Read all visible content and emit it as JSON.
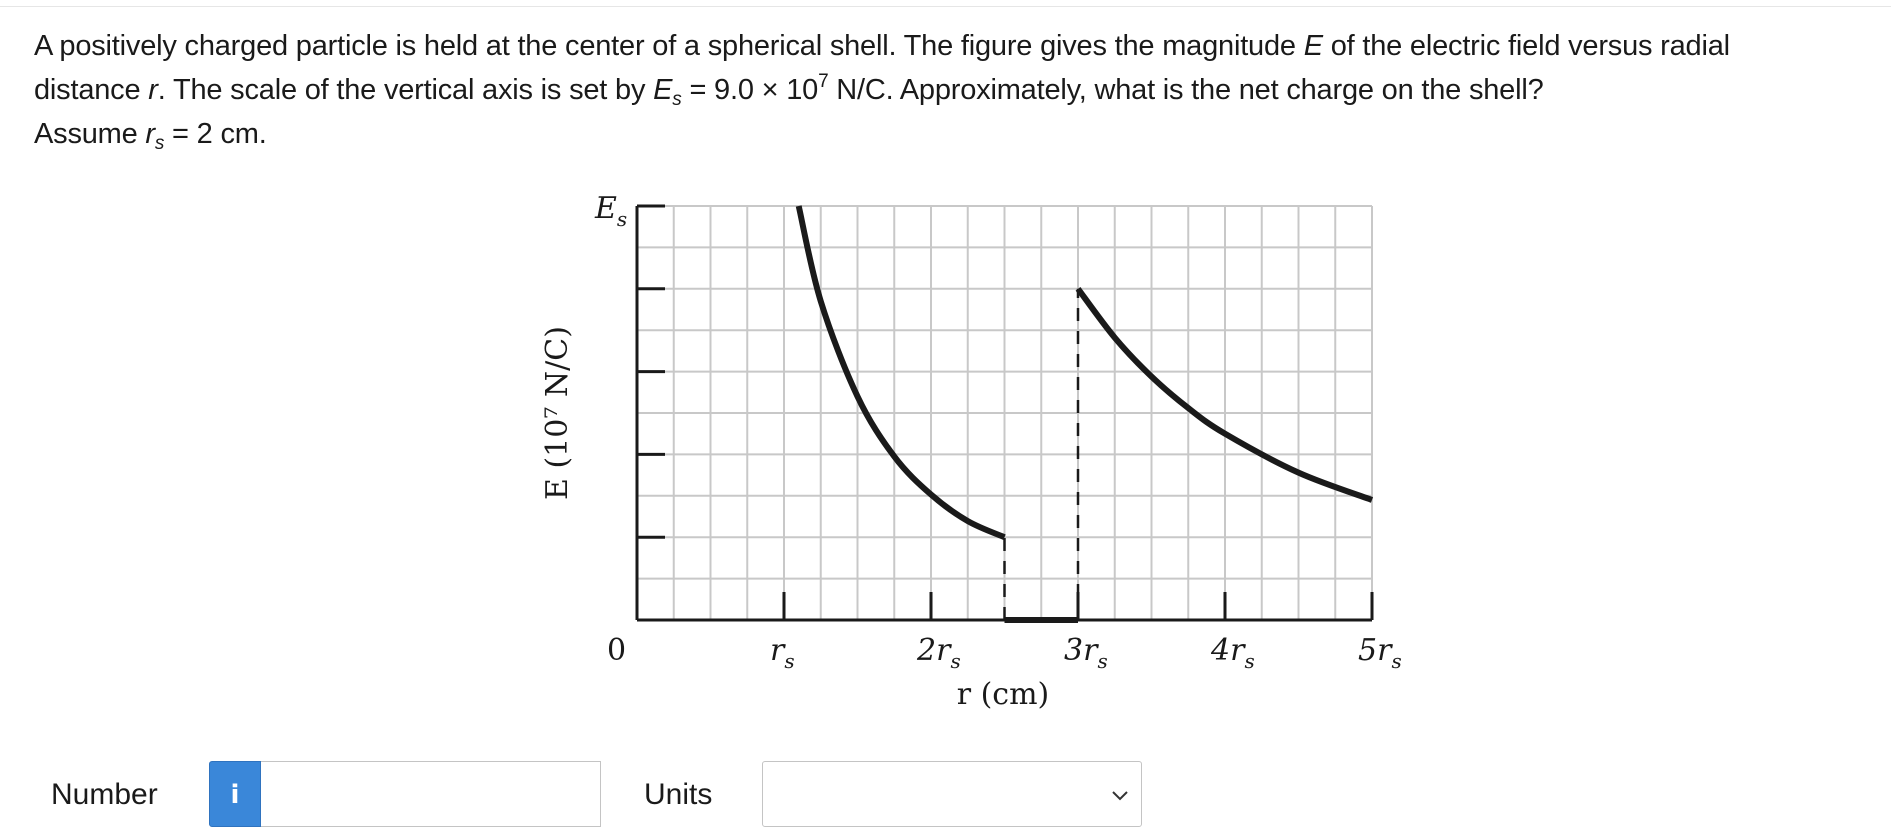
{
  "question": {
    "line1_a": "A positively charged particle is held at the center of a spherical shell. The figure gives the magnitude ",
    "line1_E": "E",
    "line1_b": " of the electric field versus radial",
    "line2_a": "distance ",
    "line2_r": "r",
    "line2_b": ". The scale of the vertical axis is set by ",
    "line2_E": "E",
    "line2_Es_sub": "s",
    "line2_c": " = 9.0 × 10",
    "line2_exp": "7",
    "line2_d": " N/C. Approximately, what is the net charge on the shell?",
    "line3_a": "Assume ",
    "line3_r": "r",
    "line3_sub": "s",
    "line3_b": " = 2 cm."
  },
  "chart_data": {
    "type": "line",
    "xlabel": "r (cm)",
    "ylabel": "E (10⁷ N/C)",
    "y_top_label_main": "E",
    "y_top_label_sub": "s",
    "origin_label": "0",
    "x_ticks": [
      {
        "value": 1,
        "main": "r",
        "sub": "s"
      },
      {
        "value": 2,
        "main": "2r",
        "sub": "s"
      },
      {
        "value": 3,
        "main": "3r",
        "sub": "s"
      },
      {
        "value": 4,
        "main": "4r",
        "sub": "s"
      },
      {
        "value": 5,
        "main": "5r",
        "sub": "s"
      }
    ],
    "xlim": [
      0,
      5
    ],
    "ylim": [
      0,
      1
    ],
    "y_ticks": [
      0,
      0.2,
      0.4,
      0.6,
      0.8,
      1.0
    ],
    "grid": true,
    "series": [
      {
        "x": [
          1.1,
          1.25,
          1.5,
          1.75,
          2.0,
          2.25,
          2.5
        ],
        "y": [
          1.0,
          0.77,
          0.54,
          0.395,
          0.303,
          0.239,
          0.2
        ]
      },
      {
        "x": [
          2.5,
          3.0
        ],
        "y": [
          0,
          0
        ]
      },
      {
        "x": [
          3.0,
          3.25,
          3.5,
          3.75,
          4.0,
          4.5,
          5.0
        ],
        "y": [
          0.8,
          0.682,
          0.588,
          0.512,
          0.45,
          0.356,
          0.29
        ]
      }
    ],
    "dashed_lines": [
      {
        "x": 2.5,
        "y_from": 0,
        "y_to": 0.2
      },
      {
        "x": 3.0,
        "y_from": 0,
        "y_to": 0.8
      }
    ]
  },
  "answer": {
    "number_label": "Number",
    "info_icon_glyph": "i",
    "number_value": "",
    "units_label": "Units",
    "units_selected": ""
  }
}
